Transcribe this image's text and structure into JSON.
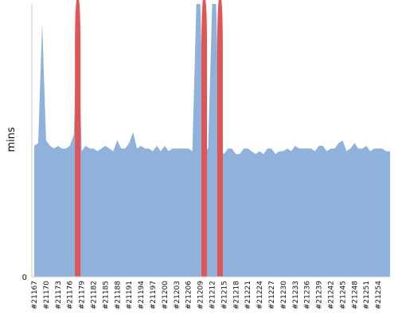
{
  "chart_data": {
    "type": "area",
    "ylabel": "mins",
    "y_tick_labels": [
      "0"
    ],
    "x_tick_labels": [
      "#21167",
      "#21170",
      "#21173",
      "#21176",
      "#21179",
      "#21182",
      "#21185",
      "#21188",
      "#21191",
      "#21194",
      "#21197",
      "#21200",
      "#21203",
      "#21206",
      "#21209",
      "#21212",
      "#21215",
      "#21218",
      "#21221",
      "#21224",
      "#21227",
      "#21230",
      "#21233",
      "#21236",
      "#21239",
      "#21242",
      "#21245",
      "#21248",
      "#21251",
      "#21254"
    ],
    "ylim": [
      0,
      100
    ],
    "series": [
      {
        "style": "area",
        "values": [
          48,
          49,
          93,
          50,
          48,
          47,
          48,
          47,
          47,
          48,
          52,
          100,
          46,
          48,
          47,
          47,
          46,
          47,
          48,
          47,
          46,
          50,
          47,
          47,
          49,
          53,
          47,
          48,
          47,
          47,
          46,
          48,
          46,
          48,
          46,
          47,
          47,
          47,
          47,
          47,
          46,
          100,
          100,
          46,
          47,
          100,
          100,
          47,
          45,
          47,
          47,
          45,
          45,
          47,
          47,
          46,
          45,
          46,
          45,
          47,
          47,
          45,
          46,
          46,
          47,
          46,
          48,
          47,
          47,
          47,
          47,
          46,
          48,
          48,
          46,
          47,
          47,
          49,
          50,
          46,
          47,
          49,
          47,
          47,
          48,
          46,
          47,
          47,
          47,
          46,
          46
        ]
      },
      {
        "style": "spikes",
        "color": "#e05555",
        "spikes": [
          {
            "x_index": 11
          },
          {
            "x_index": 43
          },
          {
            "x_index": 47
          }
        ]
      }
    ],
    "colors": {
      "area": "#8eb2dc",
      "spike": "#e05555",
      "axis": "#c8c8c8",
      "text": "#111111"
    }
  }
}
